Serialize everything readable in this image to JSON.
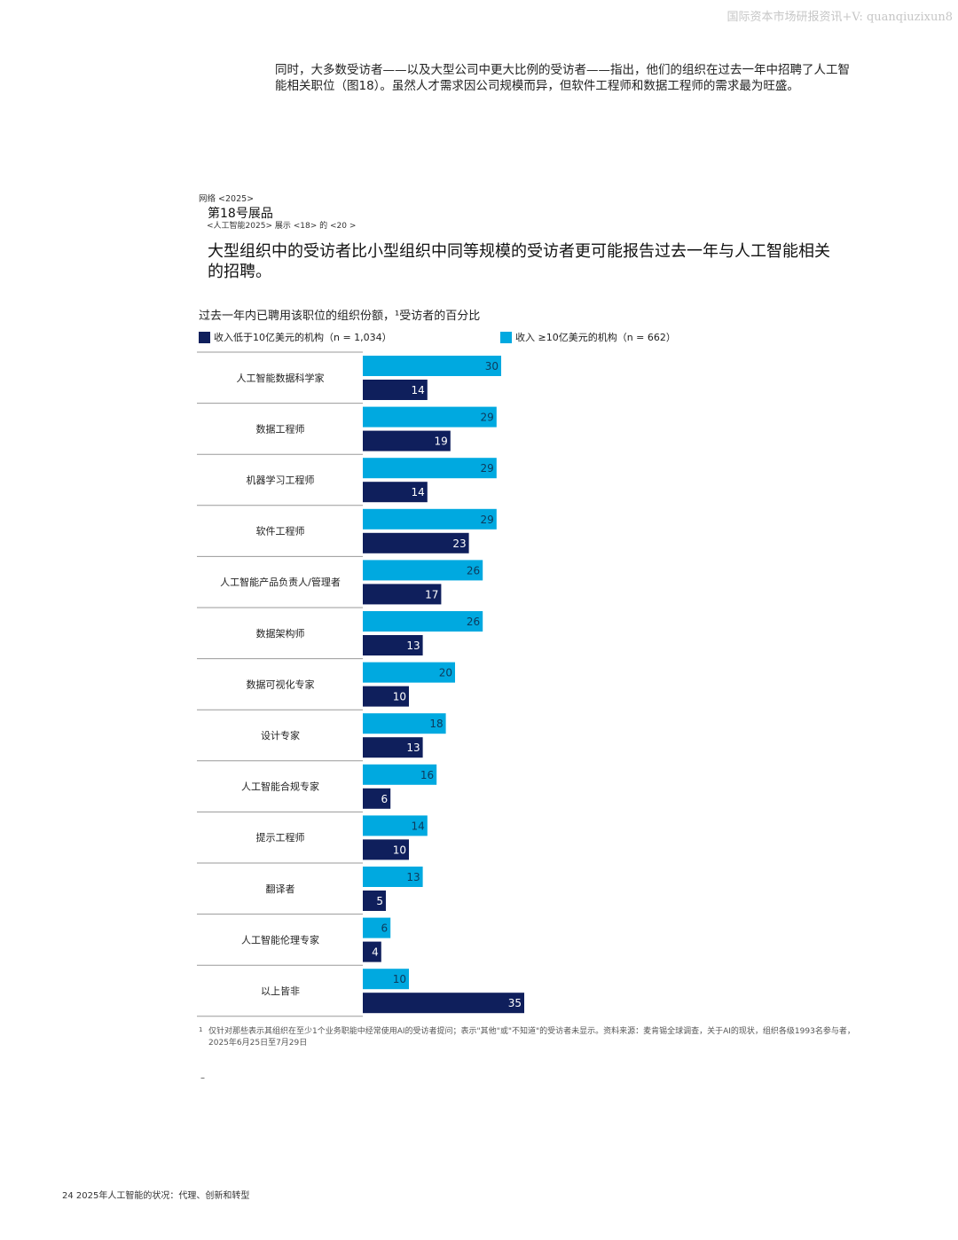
{
  "watermark": "国际资本市场研报资讯+V: quanqiuzixun8",
  "intro_text": "同时，大多数受访者——以及大型公司中更大比例的受访者——指出，他们的组织在过去一年中招聘了人工智能相关职位（图18）。虽然人才需求因公司规模而异，但软件工程师和数据工程师的需求最为旺盛。",
  "exhibit": {
    "kicker": "网络 <2025>",
    "title": "第18号展品",
    "subtitle": "<人工智能2025> 展示 <18> 的 <20 >",
    "headline": "大型组织中的受访者比小型组织中同等规模的受访者更可能报告过去一年与人工智能相关的招聘。"
  },
  "colors": {
    "large_org": "#00a9e0",
    "small_org": "#0f1f5c",
    "divider": "#9a9a9a"
  },
  "chart_data": {
    "type": "bar",
    "orientation": "horizontal",
    "title": "过去一年内已聘用该职位的组织份额，¹受访者的百分比",
    "legend_position": "top",
    "categories": [
      "人工智能数据科学家",
      "数据工程师",
      "机器学习工程师",
      "软件工程师",
      "人工智能产品负责人/管理者",
      "数据架构师",
      "数据可视化专家",
      "设计专家",
      "人工智能合规专家",
      "提示工程师",
      "翻译者",
      "人工智能伦理专家",
      "以上皆非"
    ],
    "series": [
      {
        "name": "收入 ≥10亿美元的机构（n = 662）",
        "values": [
          30,
          29,
          29,
          29,
          26,
          26,
          20,
          18,
          16,
          14,
          13,
          6,
          10
        ]
      },
      {
        "name": "收入低于10亿美元的机构（n = 1,034）",
        "values": [
          14,
          19,
          14,
          23,
          17,
          13,
          10,
          13,
          6,
          10,
          5,
          4,
          35
        ]
      }
    ],
    "xlim": [
      0,
      35
    ]
  },
  "footnote": {
    "mark": "1",
    "text": "仅针对那些表示其组织在至少1个业务职能中经常使用AI的受访者提问；表示\"其他\"或\"不知道\"的受访者未显示。资料来源：麦肯锡全球调查，关于AI的现状，组织各级1993名参与者，2025年6月25日至7月29日"
  },
  "dash": "–",
  "page_footer": "24 2025年人工智能的状况：代理、创新和转型"
}
